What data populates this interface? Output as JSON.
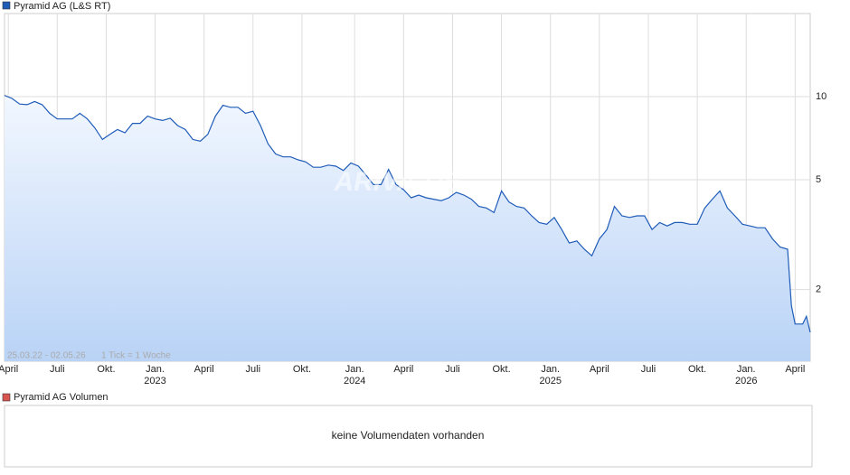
{
  "chart_data": {
    "type": "line",
    "series": [
      {
        "name": "Pyramid AG (L&S RT)",
        "color": "#1f5cb8",
        "values": [
          10.1,
          9.85,
          9.4,
          9.35,
          9.6,
          9.35,
          8.7,
          8.3,
          8.3,
          8.3,
          8.7,
          8.3,
          7.7,
          7.0,
          7.3,
          7.6,
          7.4,
          8.0,
          8.0,
          8.5,
          8.3,
          8.2,
          8.35,
          7.85,
          7.6,
          7.0,
          6.9,
          7.3,
          8.5,
          9.3,
          9.15,
          9.15,
          8.7,
          8.85,
          7.85,
          6.75,
          6.2,
          6.05,
          6.05,
          5.9,
          5.8,
          5.55,
          5.55,
          5.65,
          5.6,
          5.4,
          5.75,
          5.6,
          5.2,
          4.8,
          4.8,
          5.45,
          4.8,
          4.6,
          4.3,
          4.4,
          4.3,
          4.25,
          4.2,
          4.3,
          4.5,
          4.4,
          4.25,
          4.0,
          3.95,
          3.8,
          4.55,
          4.15,
          4.0,
          3.95,
          3.7,
          3.5,
          3.45,
          3.65,
          3.3,
          2.95,
          3.0,
          2.8,
          2.65,
          3.05,
          3.3,
          4.0,
          3.7,
          3.65,
          3.7,
          3.7,
          3.3,
          3.5,
          3.4,
          3.5,
          3.5,
          3.45,
          3.45,
          3.95,
          4.25,
          4.55,
          3.95,
          3.7,
          3.45,
          3.4,
          3.35,
          3.35,
          3.05,
          2.85,
          2.8,
          1.75,
          1.5,
          1.5,
          1.6,
          1.4
        ]
      }
    ],
    "x": [
      0,
      2,
      4,
      6,
      8,
      10,
      12,
      14,
      16,
      18,
      20,
      22,
      24,
      26,
      28,
      30,
      32,
      34,
      36,
      38,
      40,
      42,
      44,
      46,
      48,
      50,
      52,
      54,
      56,
      58,
      60,
      62,
      64,
      66,
      68,
      70,
      72,
      74,
      76,
      78,
      80,
      82,
      84,
      86,
      88,
      90,
      92,
      94,
      96,
      98,
      100,
      102,
      104,
      106,
      108,
      110,
      112,
      114,
      116,
      118,
      120,
      122,
      124,
      126,
      128,
      130,
      132,
      134,
      136,
      138,
      140,
      142,
      144,
      146,
      148,
      150,
      152,
      154,
      156,
      158,
      160,
      162,
      164,
      166,
      168,
      170,
      172,
      174,
      176,
      178,
      180,
      182,
      184,
      186,
      188,
      190,
      192,
      194,
      196,
      198,
      200,
      202,
      204,
      206,
      208,
      209,
      210,
      212,
      213,
      214
    ],
    "xlim": [
      0,
      214
    ],
    "xticks": [
      {
        "value": 1,
        "label": "April"
      },
      {
        "value": 14,
        "label": "Juli"
      },
      {
        "value": 27,
        "label": "Okt."
      },
      {
        "value": 40,
        "label": "Jan."
      },
      {
        "value": 53,
        "label": "April"
      },
      {
        "value": 66,
        "label": "Juli"
      },
      {
        "value": 79,
        "label": "Okt."
      },
      {
        "value": 93,
        "label": "Jan."
      },
      {
        "value": 106,
        "label": "April"
      },
      {
        "value": 119,
        "label": "Juli"
      },
      {
        "value": 132,
        "label": "Okt."
      },
      {
        "value": 145,
        "label": "Jan."
      },
      {
        "value": 158,
        "label": "April"
      },
      {
        "value": 171,
        "label": "Juli"
      },
      {
        "value": 184,
        "label": "Okt."
      },
      {
        "value": 197,
        "label": "Jan."
      },
      {
        "value": 210,
        "label": "April"
      }
    ],
    "xyears": [
      {
        "value": 40,
        "label": "2023"
      },
      {
        "value": 93,
        "label": "2024"
      },
      {
        "value": 145,
        "label": "2025"
      },
      {
        "value": 197,
        "label": "2026"
      }
    ],
    "ylim": [
      1.1,
      20
    ],
    "yscale": "log",
    "yticks": [
      2,
      5,
      10
    ],
    "grid": true,
    "range_note": "25.03.22 - 02.05.26",
    "tick_note": "1 Tick = 1 Woche",
    "watermark": "ARIVA.DE"
  },
  "volume_panel": {
    "legend": "Pyramid AG Volumen",
    "color": "#d9534f",
    "message": "keine Volumendaten vorhanden"
  }
}
